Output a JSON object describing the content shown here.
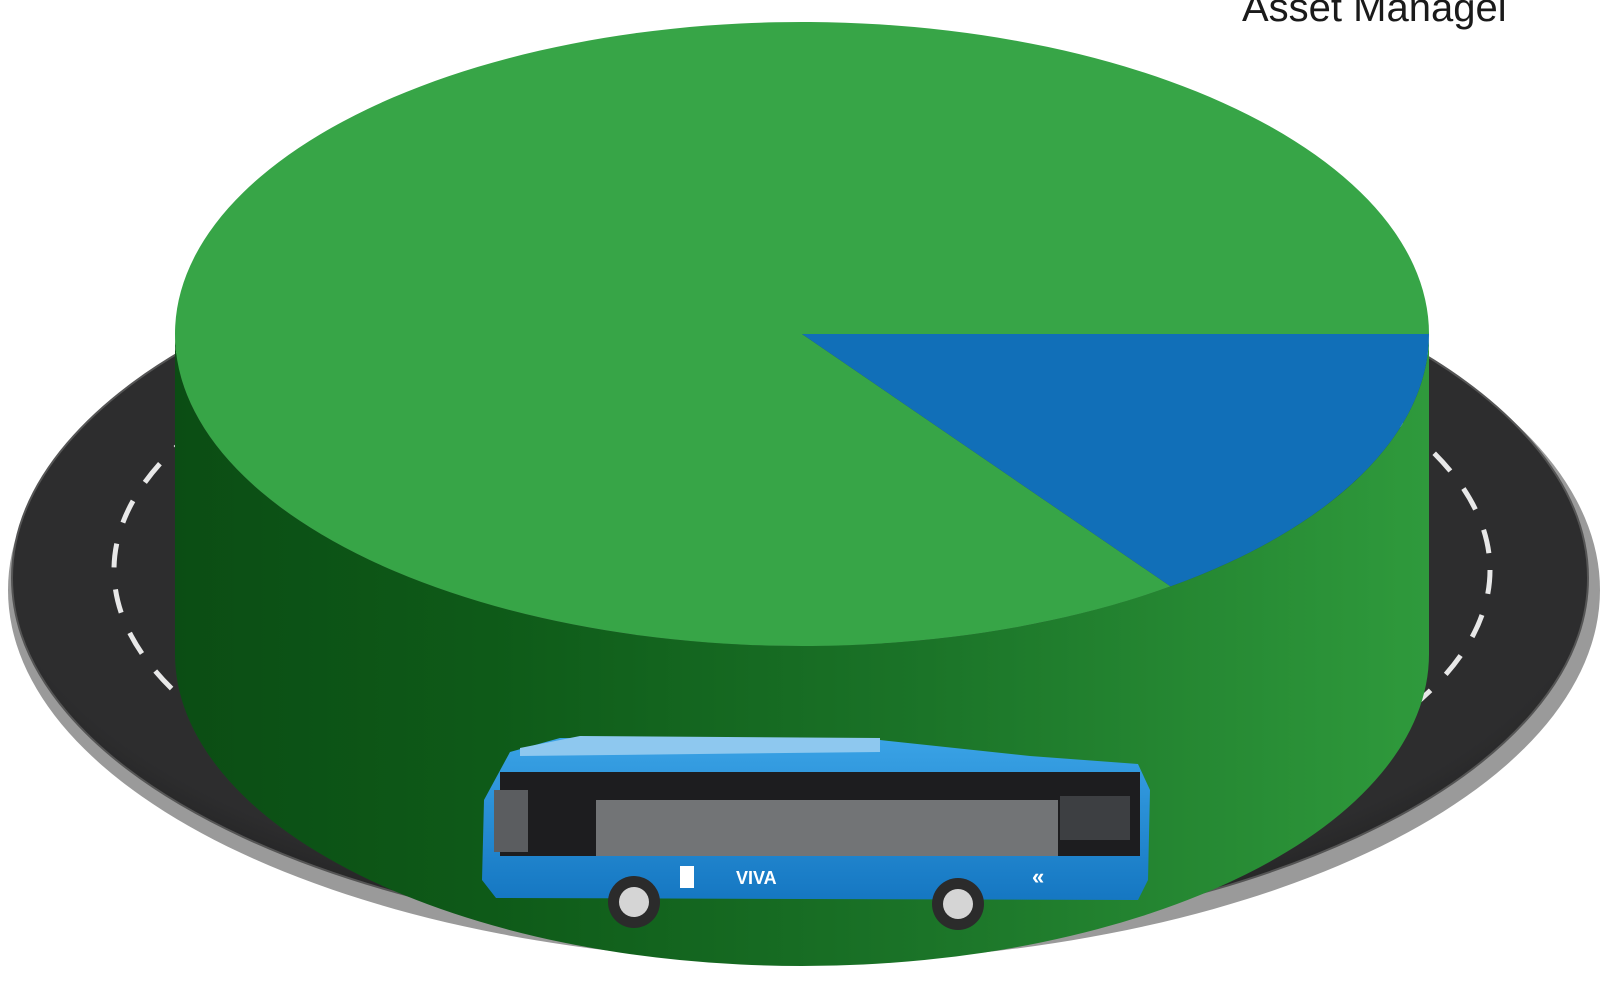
{
  "title": "Asset Managei",
  "bus": {
    "brand": "VIVA",
    "chevrons": "«"
  },
  "colors": {
    "green_top": "#37a547",
    "green_side_dark": "#0b4d14",
    "green_side_mid": "#2c8b38",
    "blue_slice": "#116fb8",
    "road": "#2a2a2b",
    "bus_body": "#1f8fda"
  },
  "chart_data": {
    "type": "pie",
    "title": "Asset Managei",
    "slices": [
      {
        "label": "",
        "value": 85,
        "color": "#37a547"
      },
      {
        "label": "",
        "value": 15,
        "color": "#116fb8"
      }
    ],
    "start_angle_deg": 0,
    "direction": "counter-clockwise",
    "legend": "none",
    "style": "3d-disc"
  }
}
